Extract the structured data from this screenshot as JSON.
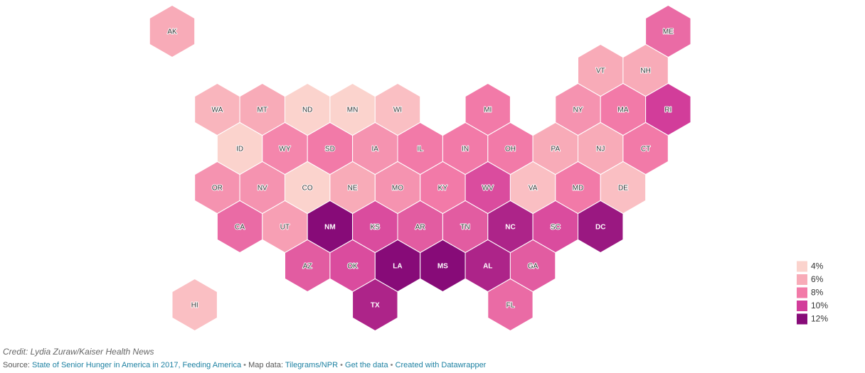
{
  "map": {
    "states": [
      {
        "label": "AK",
        "value": 6
      },
      {
        "label": "ME",
        "value": 8.5
      },
      {
        "label": "VT",
        "value": 6
      },
      {
        "label": "NH",
        "value": 6
      },
      {
        "label": "WA",
        "value": 5.5
      },
      {
        "label": "MT",
        "value": 6
      },
      {
        "label": "ND",
        "value": 4
      },
      {
        "label": "MN",
        "value": 3.5
      },
      {
        "label": "WI",
        "value": 5
      },
      {
        "label": "MI",
        "value": 8
      },
      {
        "label": "NY",
        "value": 7
      },
      {
        "label": "MA",
        "value": 8
      },
      {
        "label": "RI",
        "value": 10
      },
      {
        "label": "ID",
        "value": 4
      },
      {
        "label": "WY",
        "value": 7.5
      },
      {
        "label": "SD",
        "value": 8
      },
      {
        "label": "IA",
        "value": 7
      },
      {
        "label": "IL",
        "value": 8
      },
      {
        "label": "IN",
        "value": 8
      },
      {
        "label": "OH",
        "value": 8
      },
      {
        "label": "PA",
        "value": 6
      },
      {
        "label": "NJ",
        "value": 6
      },
      {
        "label": "CT",
        "value": 8
      },
      {
        "label": "OR",
        "value": 7
      },
      {
        "label": "NV",
        "value": 7
      },
      {
        "label": "CO",
        "value": 3.5
      },
      {
        "label": "NE",
        "value": 6
      },
      {
        "label": "MO",
        "value": 7
      },
      {
        "label": "KY",
        "value": 8
      },
      {
        "label": "WV",
        "value": 9.5
      },
      {
        "label": "VA",
        "value": 5
      },
      {
        "label": "MD",
        "value": 8
      },
      {
        "label": "DE",
        "value": 5
      },
      {
        "label": "CA",
        "value": 8.5
      },
      {
        "label": "UT",
        "value": 6.5
      },
      {
        "label": "NM",
        "value": 12
      },
      {
        "label": "KS",
        "value": 9.5
      },
      {
        "label": "AR",
        "value": 9
      },
      {
        "label": "TN",
        "value": 9
      },
      {
        "label": "NC",
        "value": 11
      },
      {
        "label": "SC",
        "value": 9.5
      },
      {
        "label": "DC",
        "value": 11.5
      },
      {
        "label": "AZ",
        "value": 9
      },
      {
        "label": "OK",
        "value": 9.5
      },
      {
        "label": "LA",
        "value": 13
      },
      {
        "label": "MS",
        "value": 13
      },
      {
        "label": "AL",
        "value": 11
      },
      {
        "label": "GA",
        "value": 9
      },
      {
        "label": "HI",
        "value": 5
      },
      {
        "label": "TX",
        "value": 11
      },
      {
        "label": "FL",
        "value": 8.5
      }
    ],
    "legend": [
      {
        "value": 4,
        "label": "4%",
        "color": "#fbd3cd"
      },
      {
        "value": 6,
        "label": "6%",
        "color": "#f8abb8"
      },
      {
        "value": 8,
        "label": "8%",
        "color": "#f27aa8"
      },
      {
        "value": 10,
        "label": "10%",
        "color": "#d23d9a"
      },
      {
        "value": 12,
        "label": "12%",
        "color": "#870b78"
      }
    ]
  },
  "footer": {
    "credit": "Credit: Lydia Zuraw/Kaiser Health News",
    "source_prefix": "Source:",
    "source": "State of Senior Hunger in America in 2017, Feeding America",
    "sep": "•",
    "map_prefix": "Map data:",
    "map_source": "Tilegrams/NPR",
    "get_data": "Get the data",
    "created": "Created with Datawrapper"
  }
}
